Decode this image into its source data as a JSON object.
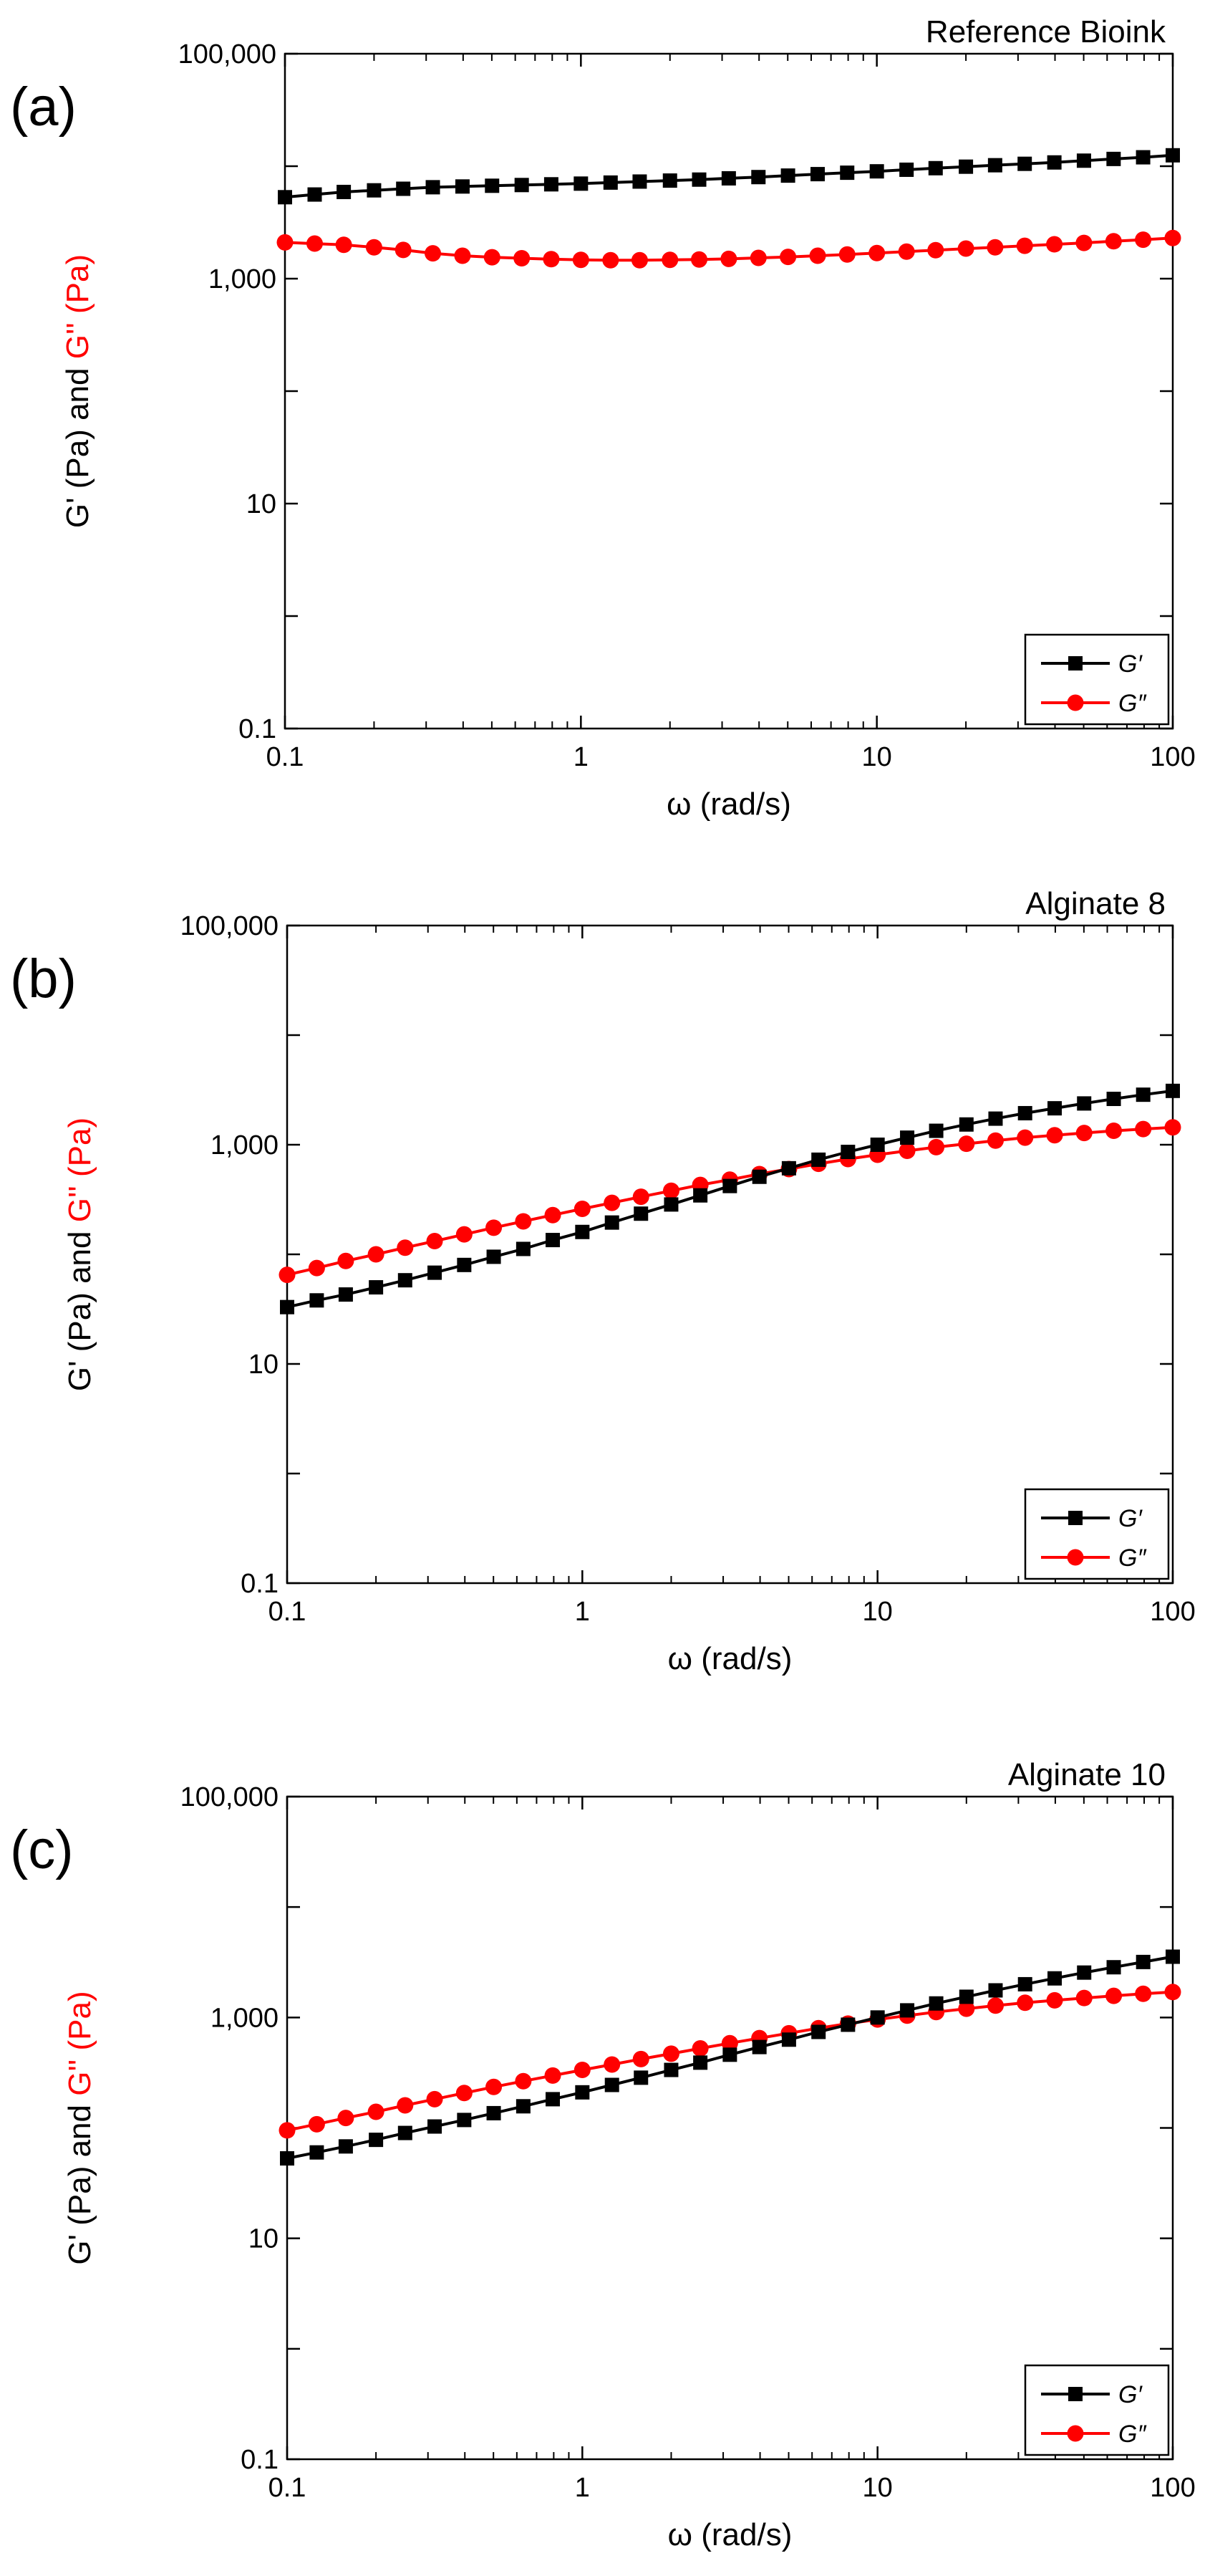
{
  "figure": {
    "background": "#ffffff"
  },
  "chart_data": [
    {
      "type": "line",
      "panel_label": "(a)",
      "title": "Reference Bioink",
      "xlabel": "ω (rad/s)",
      "ylabel_part1": "G' (Pa) and ",
      "ylabel_part2": "G'' (Pa)",
      "xscale": "log",
      "yscale": "log",
      "xlim": [
        0.1,
        100
      ],
      "ylim": [
        0.1,
        100000
      ],
      "xticks": [
        0.1,
        1,
        10,
        100
      ],
      "xtick_labels": [
        "0.1",
        "1",
        "10",
        "100"
      ],
      "yticks": [
        0.1,
        10,
        1000,
        100000
      ],
      "ytick_labels": [
        "0.1",
        "10",
        "1,000",
        "100,000"
      ],
      "legend_position": "bottom-right",
      "x": [
        0.1,
        0.126,
        0.158,
        0.2,
        0.251,
        0.316,
        0.398,
        0.501,
        0.631,
        0.794,
        1,
        1.26,
        1.58,
        2,
        2.51,
        3.16,
        3.98,
        5.01,
        6.31,
        7.94,
        10,
        12.6,
        15.8,
        20,
        25.1,
        31.6,
        39.8,
        50.1,
        63.1,
        79.4,
        100
      ],
      "series": [
        {
          "name": "G′",
          "color": "#000000",
          "marker": "square",
          "values": [
            5300,
            5600,
            5900,
            6100,
            6300,
            6500,
            6600,
            6700,
            6800,
            6900,
            7000,
            7150,
            7300,
            7450,
            7600,
            7800,
            8000,
            8250,
            8500,
            8750,
            9000,
            9300,
            9600,
            9900,
            10200,
            10500,
            10800,
            11200,
            11600,
            12000,
            12500
          ]
        },
        {
          "name": "G″",
          "color": "#ff0000",
          "marker": "circle",
          "values": [
            2100,
            2050,
            2000,
            1900,
            1800,
            1680,
            1600,
            1550,
            1520,
            1490,
            1470,
            1460,
            1460,
            1470,
            1480,
            1500,
            1530,
            1560,
            1600,
            1640,
            1690,
            1740,
            1790,
            1850,
            1900,
            1960,
            2020,
            2080,
            2150,
            2220,
            2300
          ]
        }
      ]
    },
    {
      "type": "line",
      "panel_label": "(b)",
      "title": "Alginate 8",
      "xlabel": "ω (rad/s)",
      "ylabel_part1": "G' (Pa) and ",
      "ylabel_part2": "G'' (Pa)",
      "xscale": "log",
      "yscale": "log",
      "xlim": [
        0.1,
        100
      ],
      "ylim": [
        0.1,
        100000
      ],
      "xticks": [
        0.1,
        1,
        10,
        100
      ],
      "xtick_labels": [
        "0.1",
        "1",
        "10",
        "100"
      ],
      "yticks": [
        0.1,
        10,
        1000,
        100000
      ],
      "ytick_labels": [
        "0.1",
        "10",
        "1,000",
        "100,000"
      ],
      "legend_position": "bottom-right",
      "x": [
        0.1,
        0.126,
        0.158,
        0.2,
        0.251,
        0.316,
        0.398,
        0.501,
        0.631,
        0.794,
        1,
        1.26,
        1.58,
        2,
        2.51,
        3.16,
        3.98,
        5.01,
        6.31,
        7.94,
        10,
        12.6,
        15.8,
        20,
        25.1,
        31.6,
        39.8,
        50.1,
        63.1,
        79.4,
        100
      ],
      "series": [
        {
          "name": "G′",
          "color": "#000000",
          "marker": "square",
          "values": [
            33,
            38,
            43,
            50,
            58,
            68,
            80,
            95,
            112,
            135,
            160,
            195,
            235,
            285,
            345,
            420,
            510,
            610,
            730,
            860,
            1000,
            1160,
            1340,
            1530,
            1730,
            1940,
            2150,
            2380,
            2620,
            2860,
            3100
          ]
        },
        {
          "name": "G″",
          "color": "#ff0000",
          "marker": "circle",
          "values": [
            65,
            75,
            87,
            100,
            115,
            132,
            152,
            175,
            200,
            228,
            260,
            295,
            335,
            380,
            430,
            480,
            540,
            600,
            670,
            740,
            810,
            880,
            950,
            1020,
            1090,
            1160,
            1220,
            1280,
            1340,
            1390,
            1440
          ]
        }
      ]
    },
    {
      "type": "line",
      "panel_label": "(c)",
      "title": "Alginate 10",
      "xlabel": "ω (rad/s)",
      "ylabel_part1": "G' (Pa) and ",
      "ylabel_part2": "G'' (Pa)",
      "xscale": "log",
      "yscale": "log",
      "xlim": [
        0.1,
        100
      ],
      "ylim": [
        0.1,
        100000
      ],
      "xticks": [
        0.1,
        1,
        10,
        100
      ],
      "xtick_labels": [
        "0.1",
        "1",
        "10",
        "100"
      ],
      "yticks": [
        0.1,
        10,
        1000,
        100000
      ],
      "ytick_labels": [
        "0.1",
        "10",
        "1,000",
        "100,000"
      ],
      "legend_position": "bottom-right",
      "x": [
        0.1,
        0.126,
        0.158,
        0.2,
        0.251,
        0.316,
        0.398,
        0.501,
        0.631,
        0.794,
        1,
        1.26,
        1.58,
        2,
        2.51,
        3.16,
        3.98,
        5.01,
        6.31,
        7.94,
        10,
        12.6,
        15.8,
        20,
        25.1,
        31.6,
        39.8,
        50.1,
        63.1,
        79.4,
        100
      ],
      "series": [
        {
          "name": "G′",
          "color": "#000000",
          "marker": "square",
          "values": [
            53,
            60,
            68,
            78,
            90,
            103,
            118,
            136,
            157,
            182,
            210,
            245,
            285,
            335,
            390,
            460,
            540,
            630,
            740,
            860,
            1000,
            1160,
            1340,
            1540,
            1760,
            2000,
            2260,
            2550,
            2850,
            3180,
            3550
          ]
        },
        {
          "name": "G″",
          "color": "#ff0000",
          "marker": "circle",
          "values": [
            95,
            108,
            123,
            140,
            160,
            182,
            207,
            235,
            265,
            298,
            335,
            375,
            420,
            470,
            525,
            585,
            650,
            720,
            800,
            880,
            960,
            1040,
            1120,
            1200,
            1280,
            1360,
            1430,
            1500,
            1570,
            1640,
            1700
          ]
        }
      ]
    }
  ]
}
